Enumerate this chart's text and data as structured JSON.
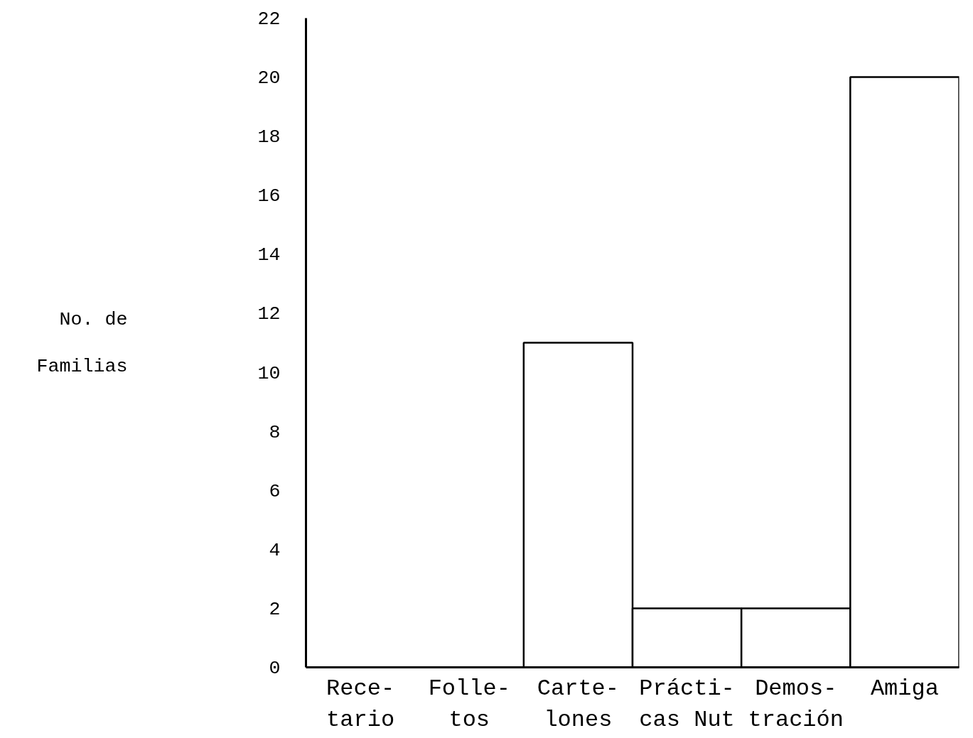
{
  "chart_data": {
    "type": "bar",
    "ylabel": "No. de\nFamilias",
    "categories": [
      "Rece-\ntario",
      "Folle-\ntos",
      "Carte-\nlones",
      "Prácti-\ncas Nut",
      "Demos-\ntración",
      "Amiga"
    ],
    "values": [
      0,
      0,
      11,
      2,
      2,
      20
    ],
    "color": "#ffffff",
    "ylim": [
      0,
      22
    ],
    "yticks": [
      0,
      2,
      4,
      6,
      8,
      10,
      12,
      14,
      16,
      18,
      20,
      22
    ],
    "grid": false
  }
}
